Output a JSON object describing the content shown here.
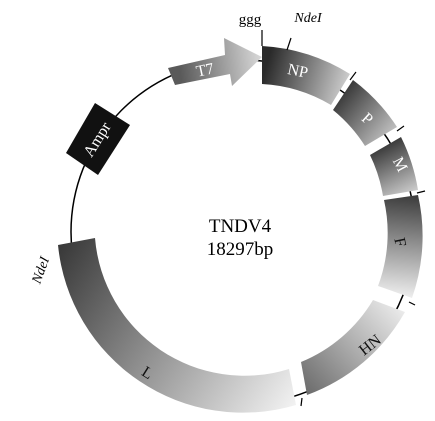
{
  "plasmid": {
    "name": "TNDV4",
    "size": "18297bp"
  },
  "site_labels": {
    "ggg": "ggg",
    "ndel_top": "NdeI",
    "ndel_left": "NdeI"
  },
  "segments": {
    "t7": "T7",
    "ampr": "Ampr",
    "np": "NP",
    "p": "P",
    "m": "M",
    "f": "F",
    "hn": "HN",
    "l": "L"
  },
  "colors": {
    "dark": "#1a1a1a",
    "mid": "#6a6a6a",
    "light": "#e6e6e6",
    "outline": "#000000"
  }
}
